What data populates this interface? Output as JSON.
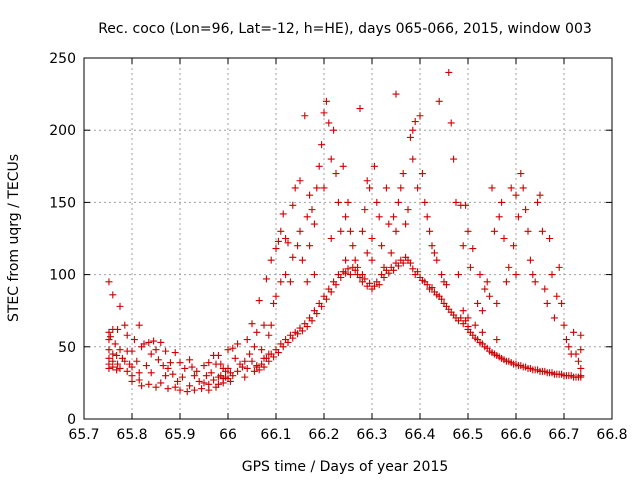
{
  "chart_data": {
    "type": "scatter",
    "title": "Rec. coco (Lon=96, Lat=-12, h=HE), days 065-066, 2015, window 003",
    "xlabel": "GPS time / Days of year 2015",
    "ylabel": "STEC from uqrg / TECUs",
    "xlim": [
      65.7,
      66.8
    ],
    "ylim": [
      0,
      250
    ],
    "xticks": [
      "65.7",
      "65.8",
      "65.9",
      "66",
      "66.1",
      "66.2",
      "66.3",
      "66.4",
      "66.5",
      "66.6",
      "66.7",
      "66.8"
    ],
    "xtick_values": [
      65.7,
      65.8,
      65.9,
      66.0,
      66.1,
      66.2,
      66.3,
      66.4,
      66.5,
      66.6,
      66.7,
      66.8
    ],
    "yticks": [
      "0",
      "50",
      "100",
      "150",
      "200",
      "250"
    ],
    "ytick_values": [
      0,
      50,
      100,
      150,
      200,
      250
    ],
    "grid": true,
    "marker": "+",
    "color": "#cc0000",
    "series": [
      {
        "x": [
          65.752,
          65.752,
          65.752,
          65.752,
          65.752,
          65.752,
          65.752,
          65.755,
          65.76,
          65.76,
          65.76,
          65.76,
          65.76,
          65.765,
          65.768,
          65.768,
          65.77,
          65.77,
          65.775,
          65.775,
          65.775,
          65.78,
          65.785,
          65.785,
          65.79,
          65.79,
          65.79,
          65.795,
          65.8,
          65.8,
          65.8,
          65.8,
          65.805,
          65.81,
          65.815,
          65.815,
          65.815,
          65.82,
          65.82,
          65.825,
          65.83,
          65.835,
          65.835,
          65.84,
          65.84,
          65.845,
          65.85,
          65.85,
          65.855,
          65.86,
          65.86,
          65.865,
          65.87,
          65.87,
          65.875,
          65.875,
          65.88,
          65.885,
          65.89,
          65.89,
          65.895,
          65.9,
          65.9,
          65.905,
          65.91,
          65.915,
          65.92,
          65.92,
          65.925,
          65.93,
          65.93,
          65.935,
          65.94,
          65.945,
          65.95,
          65.95,
          65.955,
          65.96,
          65.96,
          65.96,
          65.965,
          65.97,
          65.97,
          65.975,
          65.975,
          65.98,
          65.98
        ],
        "y": [
          95,
          60,
          55,
          48,
          42,
          38,
          35,
          57,
          86,
          62,
          45,
          40,
          36,
          52,
          44,
          34,
          62,
          38,
          78,
          48,
          35,
          42,
          65,
          40,
          58,
          47,
          33,
          38,
          47,
          36,
          30,
          26,
          55,
          40,
          65,
          32,
          27,
          50,
          23,
          52,
          37,
          53,
          24,
          45,
          32,
          54,
          48,
          22,
          41,
          53,
          25,
          37,
          47,
          30,
          35,
          21,
          39,
          31,
          46,
          22,
          26,
          39,
          20,
          29,
          35,
          19,
          41,
          23,
          36,
          30,
          20,
          33,
          26,
          21,
          37,
          25,
          30,
          39,
          24,
          20,
          32,
          44,
          27,
          38,
          22,
          29,
          24
        ]
      },
      {
        "x": [
          66.0,
          66.0,
          66.0,
          66.005,
          66.005,
          66.01,
          66.01,
          66.015,
          66.02,
          66.02,
          66.025,
          66.03,
          66.035,
          66.035,
          66.04,
          66.04,
          66.045,
          66.05,
          66.05,
          66.055,
          66.06,
          66.06,
          66.065,
          66.07,
          66.075,
          66.075,
          66.08,
          66.085,
          66.085,
          66.09,
          66.09,
          66.095,
          66.1,
          66.1,
          66.105,
          66.11,
          66.11,
          66.115,
          66.12,
          66.12,
          66.125,
          66.13,
          66.135,
          66.135,
          66.14,
          66.145,
          66.15,
          66.15,
          66.155,
          66.16,
          66.165,
          66.165,
          66.17,
          66.17,
          66.175,
          66.18,
          66.18,
          66.185,
          66.19,
          66.195,
          66.2,
          66.2,
          66.205,
          66.21,
          66.215,
          66.215,
          66.22,
          66.225,
          66.23,
          66.235,
          66.24,
          66.245,
          66.245,
          66.25,
          66.255,
          66.26,
          66.265,
          66.27,
          66.275,
          66.28,
          66.28,
          66.285,
          66.29,
          66.29,
          66.295,
          66.3,
          66.3,
          66.305,
          66.31,
          66.315,
          66.32,
          66.325,
          66.33,
          66.335,
          66.34,
          66.345,
          66.35,
          66.35,
          66.355,
          66.36,
          66.365,
          66.37,
          66.375,
          66.38,
          66.385,
          66.385,
          66.39,
          66.395,
          66.4,
          66.405,
          66.41,
          66.415,
          66.42,
          66.425,
          66.43,
          66.435,
          66.44,
          66.445,
          66.45,
          66.455,
          66.46,
          66.465,
          66.47,
          66.475,
          66.48,
          66.485,
          66.49
        ],
        "y": [
          48,
          35,
          28,
          32,
          26,
          49,
          30,
          42,
          52,
          33,
          38,
          36,
          40,
          29,
          55,
          35,
          45,
          66,
          40,
          50,
          60,
          37,
          82,
          48,
          65,
          42,
          97,
          58,
          45,
          110,
          65,
          80,
          118,
          85,
          123,
          130,
          95,
          142,
          125,
          100,
          122,
          95,
          148,
          112,
          160,
          120,
          165,
          130,
          110,
          210,
          140,
          95,
          155,
          120,
          145,
          135,
          100,
          160,
          175,
          190,
          212,
          160,
          220,
          205,
          180,
          125,
          200,
          170,
          150,
          130,
          175,
          140,
          110,
          150,
          130,
          120,
          110,
          105,
          215,
          130,
          100,
          145,
          165,
          115,
          160,
          110,
          125,
          175,
          150,
          140,
          120,
          105,
          160,
          135,
          115,
          140,
          225,
          130,
          150,
          160,
          170,
          135,
          145,
          195,
          200,
          180,
          206,
          160,
          210,
          170,
          150,
          140,
          130,
          120,
          115,
          110,
          220,
          100,
          95,
          93,
          240,
          205,
          180,
          150,
          100,
          148,
          120
        ],
        "x2": [
          66.055,
          66.06,
          66.065,
          66.07,
          66.075,
          66.08,
          66.085,
          66.09,
          66.095,
          66.1,
          66.105,
          66.11,
          66.115,
          66.12,
          66.125,
          66.13,
          66.135,
          66.14,
          66.145,
          66.15,
          66.155,
          66.16,
          66.165,
          66.17,
          66.175,
          66.18,
          66.185,
          66.19,
          66.195,
          66.2,
          66.205,
          66.21,
          66.215,
          66.22,
          66.225,
          66.23,
          66.235,
          66.24,
          66.245,
          66.25,
          66.255,
          66.26,
          66.265,
          66.27,
          66.275,
          66.28,
          66.285,
          66.29,
          66.295,
          66.3,
          66.305,
          66.31,
          66.315,
          66.32,
          66.325,
          66.33,
          66.335,
          66.34,
          66.345,
          66.35,
          66.355,
          66.36,
          66.365,
          66.37,
          66.375,
          66.38,
          66.385,
          66.39,
          66.395,
          66.4,
          66.405,
          66.41,
          66.415,
          66.42,
          66.425,
          66.43,
          66.435,
          66.44,
          66.445,
          66.45,
          66.455,
          66.46,
          66.465,
          66.47,
          66.475,
          66.48,
          66.485,
          66.49,
          66.495,
          66.5
        ],
        "y2": [
          33,
          36,
          34,
          38,
          36,
          42,
          40,
          45,
          43,
          48,
          46,
          52,
          50,
          55,
          53,
          58,
          56,
          60,
          59,
          63,
          61,
          66,
          64,
          70,
          68,
          75,
          73,
          80,
          78,
          85,
          83,
          90,
          88,
          95,
          93,
          100,
          98,
          102,
          101,
          104,
          100,
          105,
          103,
          100,
          98,
          95,
          97,
          92,
          94,
          90,
          92,
          95,
          93,
          100,
          98,
          103,
          101,
          105,
          103,
          108,
          106,
          110,
          108,
          112,
          110,
          108,
          104,
          100,
          102,
          98,
          96,
          95,
          93,
          90,
          91,
          88,
          86,
          85,
          83,
          80,
          78,
          76,
          74,
          72,
          70,
          68,
          70,
          66,
          68,
          64
        ]
      },
      {
        "x": [
          66.49,
          66.495,
          66.5,
          66.5,
          66.505,
          66.51,
          66.515,
          66.52,
          66.525,
          66.53,
          66.53,
          66.535,
          66.54,
          66.545,
          66.55,
          66.555,
          66.56,
          66.56,
          66.565,
          66.57,
          66.575,
          66.58,
          66.585,
          66.59,
          66.595,
          66.6,
          66.6,
          66.605,
          66.61,
          66.615,
          66.62,
          66.625,
          66.63,
          66.635,
          66.64,
          66.645,
          66.65,
          66.655,
          66.66,
          66.665,
          66.67,
          66.675,
          66.68,
          66.685,
          66.69,
          66.695,
          66.7,
          66.705,
          66.71,
          66.715,
          66.72,
          66.725,
          66.73,
          66.735,
          66.735,
          66.735,
          66.735
        ],
        "y": [
          75,
          148,
          130,
          70,
          105,
          118,
          65,
          80,
          100,
          75,
          60,
          90,
          95,
          85,
          160,
          130,
          80,
          55,
          140,
          150,
          125,
          95,
          105,
          160,
          120,
          155,
          100,
          140,
          170,
          160,
          145,
          130,
          110,
          100,
          95,
          150,
          155,
          130,
          90,
          80,
          125,
          100,
          70,
          85,
          105,
          80,
          65,
          55,
          50,
          45,
          60,
          45,
          40,
          58,
          48,
          35,
          30
        ],
        "x2": [
          66.5,
          66.505,
          66.51,
          66.515,
          66.52,
          66.525,
          66.53,
          66.535,
          66.54,
          66.545,
          66.55,
          66.555,
          66.56,
          66.565,
          66.57,
          66.575,
          66.58,
          66.585,
          66.59,
          66.595,
          66.6,
          66.605,
          66.61,
          66.615,
          66.62,
          66.625,
          66.63,
          66.635,
          66.64,
          66.645,
          66.65,
          66.655,
          66.66,
          66.665,
          66.67,
          66.675,
          66.68,
          66.685,
          66.69,
          66.695,
          66.7,
          66.705,
          66.71,
          66.715,
          66.72,
          66.725,
          66.73,
          66.735
        ],
        "y2": [
          62,
          60,
          58,
          56,
          55,
          53,
          52,
          50,
          49,
          47,
          46,
          45,
          44,
          43,
          42,
          41,
          40,
          40,
          39,
          38,
          38,
          37,
          37,
          36,
          36,
          35,
          35,
          34,
          34,
          34,
          33,
          33,
          33,
          32,
          32,
          32,
          31,
          31,
          31,
          31,
          30,
          30,
          30,
          30,
          29,
          29,
          29,
          29
        ]
      },
      {
        "x": [
          65.98,
          65.985,
          65.985,
          65.99,
          65.99,
          65.99,
          65.995,
          65.995
        ],
        "y": [
          44,
          38,
          30,
          35,
          28,
          25,
          33,
          29
        ]
      }
    ]
  }
}
